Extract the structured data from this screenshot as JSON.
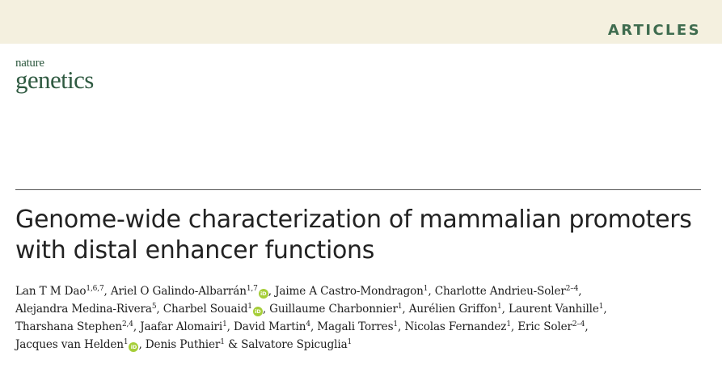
{
  "header": {
    "section_label": "ARTICLES"
  },
  "journal": {
    "logo_top": "nature",
    "logo_bottom": "genetics"
  },
  "article": {
    "title_line1": "Genome-wide characterization of mammalian promoters",
    "title_line2": "with distal enhancer functions"
  },
  "authors": [
    {
      "name": "Lan T M Dao",
      "aff": "1,6,7",
      "orcid": false,
      "sep": ", "
    },
    {
      "name": "Ariel O Galindo-Albarrán",
      "aff": "1,7",
      "orcid": true,
      "sep": ", "
    },
    {
      "name": "Jaime A Castro-Mondragon",
      "aff": "1",
      "orcid": false,
      "sep": ", "
    },
    {
      "name": "Charlotte Andrieu-Soler",
      "aff": "2–4",
      "orcid": false,
      "sep": ", "
    },
    {
      "name": "Alejandra Medina-Rivera",
      "aff": "5",
      "orcid": false,
      "sep": ", "
    },
    {
      "name": "Charbel Souaid",
      "aff": "1",
      "orcid": true,
      "sep": ", "
    },
    {
      "name": "Guillaume Charbonnier",
      "aff": "1",
      "orcid": false,
      "sep": ", "
    },
    {
      "name": "Aurélien Griffon",
      "aff": "1",
      "orcid": false,
      "sep": ", "
    },
    {
      "name": "Laurent Vanhille",
      "aff": "1",
      "orcid": false,
      "sep": ", "
    },
    {
      "name": "Tharshana Stephen",
      "aff": "2,4",
      "orcid": false,
      "sep": ", "
    },
    {
      "name": "Jaafar Alomairi",
      "aff": "1",
      "orcid": false,
      "sep": ", "
    },
    {
      "name": "David Martin",
      "aff": "4",
      "orcid": false,
      "sep": ", "
    },
    {
      "name": "Magali Torres",
      "aff": "1",
      "orcid": false,
      "sep": ", "
    },
    {
      "name": "Nicolas Fernandez",
      "aff": "1",
      "orcid": false,
      "sep": ", "
    },
    {
      "name": "Eric Soler",
      "aff": "2–4",
      "orcid": false,
      "sep": ", "
    },
    {
      "name": "Jacques van Helden",
      "aff": "1",
      "orcid": true,
      "sep": ", "
    },
    {
      "name": "Denis Puthier",
      "aff": "1",
      "orcid": false,
      "sep": " & "
    },
    {
      "name": "Salvatore Spicuglia",
      "aff": "1",
      "orcid": false,
      "sep": ""
    }
  ],
  "icons": {
    "orcid_label": "iD",
    "orcid_color": "#a6ce39"
  },
  "colors": {
    "brand_green": "#3f6c4f",
    "header_bg": "#f4f0df"
  }
}
